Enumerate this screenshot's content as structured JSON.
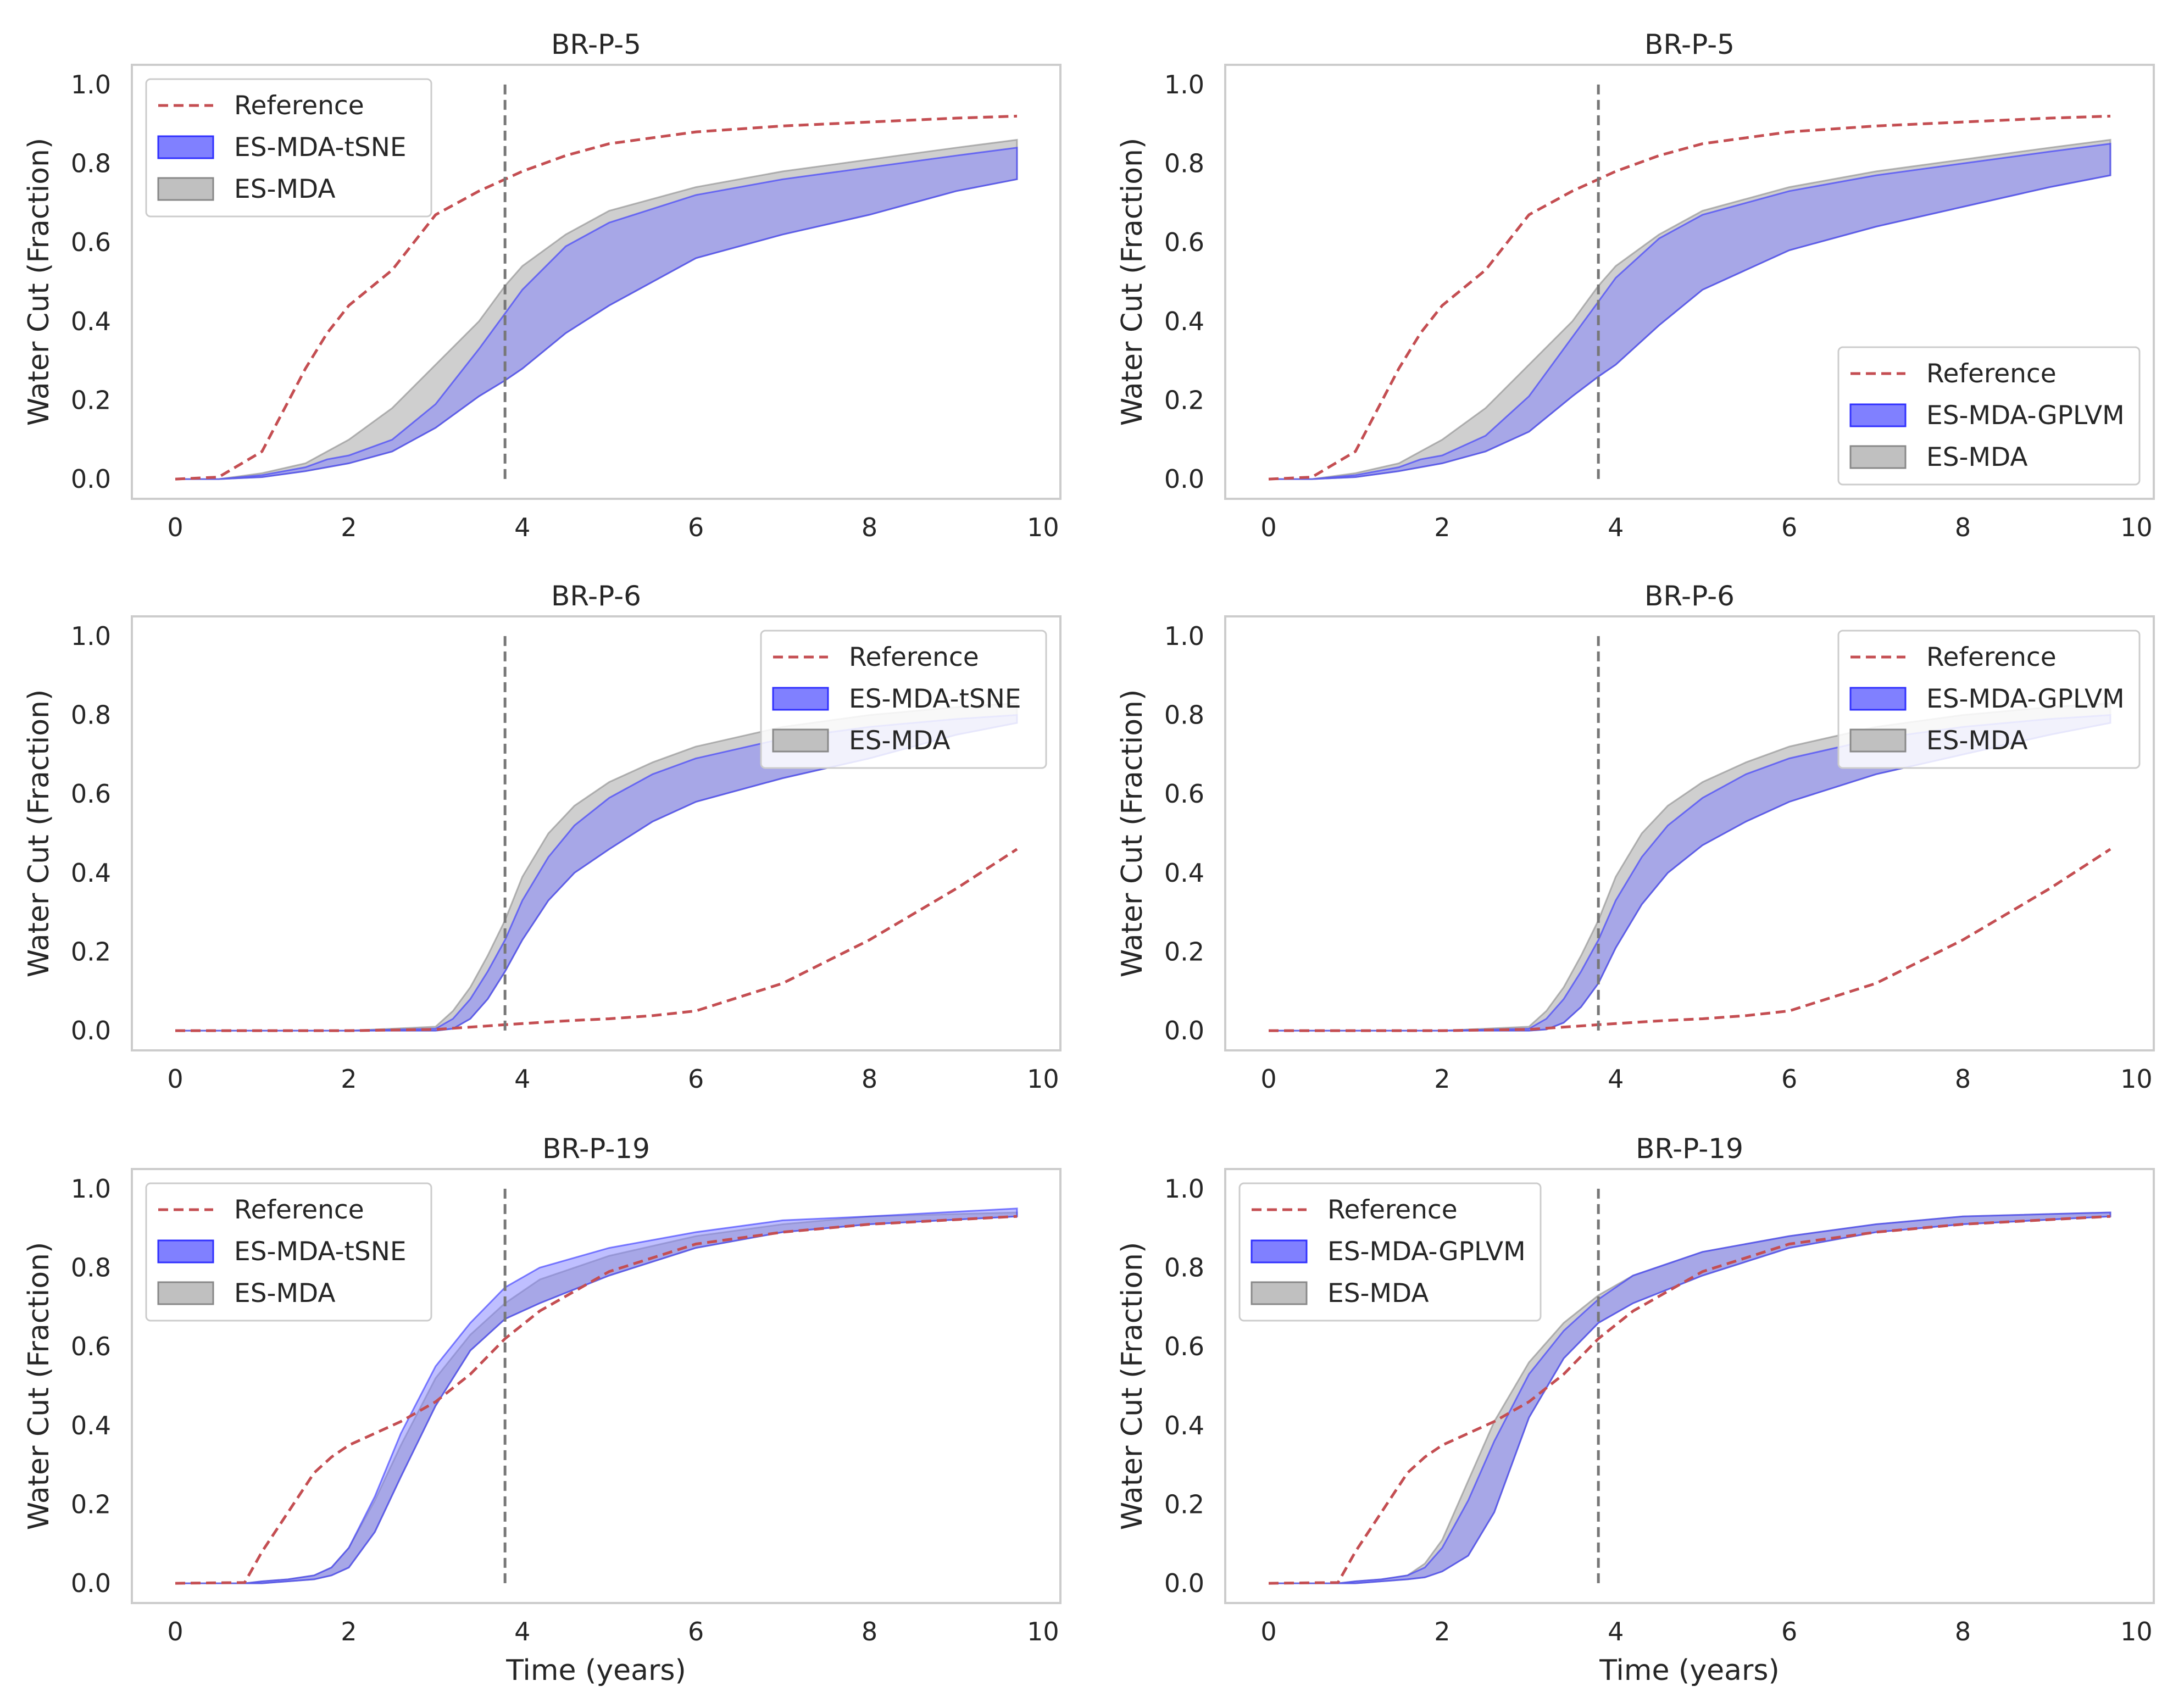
{
  "chart_data": [
    {
      "type": "area",
      "title": "BR-P-5",
      "xlabel": "",
      "ylabel": "Water Cut (Fraction)",
      "xlim": [
        -0.5,
        10.2
      ],
      "ylim": [
        -0.05,
        1.05
      ],
      "xticks": [
        "0",
        "2",
        "4",
        "6",
        "8",
        "10"
      ],
      "yticks": [
        "0.0",
        "0.2",
        "0.4",
        "0.6",
        "0.8",
        "1.0"
      ],
      "vline_x": 3.8,
      "legend_position": "upper-left",
      "legend": [
        "Reference",
        "ES-MDA-tSNE",
        "ES-MDA"
      ],
      "x": [
        0,
        0.5,
        1,
        1.5,
        1.75,
        2,
        2.5,
        3,
        3.5,
        3.8,
        4,
        4.5,
        5,
        6,
        7,
        8,
        9,
        9.7
      ],
      "series": [
        {
          "name": "Reference",
          "values": [
            0,
            0.005,
            0.07,
            0.28,
            0.37,
            0.44,
            0.53,
            0.67,
            0.73,
            0.76,
            0.78,
            0.82,
            0.85,
            0.88,
            0.895,
            0.905,
            0.915,
            0.92
          ]
        },
        {
          "name": "ES-MDA-tSNE",
          "lower": [
            0,
            0,
            0.005,
            0.02,
            0.03,
            0.04,
            0.07,
            0.13,
            0.21,
            0.25,
            0.28,
            0.37,
            0.44,
            0.56,
            0.62,
            0.67,
            0.73,
            0.76
          ],
          "upper": [
            0,
            0,
            0.01,
            0.03,
            0.05,
            0.06,
            0.1,
            0.19,
            0.33,
            0.42,
            0.48,
            0.59,
            0.65,
            0.72,
            0.76,
            0.79,
            0.82,
            0.84
          ]
        },
        {
          "name": "ES-MDA",
          "lower": [
            0,
            0,
            0.005,
            0.02,
            0.03,
            0.04,
            0.07,
            0.13,
            0.21,
            0.25,
            0.28,
            0.37,
            0.44,
            0.56,
            0.62,
            0.67,
            0.73,
            0.76
          ],
          "upper": [
            0,
            0,
            0.015,
            0.04,
            0.07,
            0.1,
            0.18,
            0.29,
            0.4,
            0.49,
            0.54,
            0.62,
            0.68,
            0.74,
            0.78,
            0.81,
            0.84,
            0.86
          ]
        }
      ]
    },
    {
      "type": "area",
      "title": "BR-P-5",
      "xlabel": "",
      "ylabel": "Water Cut (Fraction)",
      "xlim": [
        -0.5,
        10.2
      ],
      "ylim": [
        -0.05,
        1.05
      ],
      "xticks": [
        "0",
        "2",
        "4",
        "6",
        "8",
        "10"
      ],
      "yticks": [
        "0.0",
        "0.2",
        "0.4",
        "0.6",
        "0.8",
        "1.0"
      ],
      "vline_x": 3.8,
      "legend_position": "lower-right",
      "legend": [
        "Reference",
        "ES-MDA-GPLVM",
        "ES-MDA"
      ],
      "x": [
        0,
        0.5,
        1,
        1.5,
        1.75,
        2,
        2.5,
        3,
        3.5,
        3.8,
        4,
        4.5,
        5,
        6,
        7,
        8,
        9,
        9.7
      ],
      "series": [
        {
          "name": "Reference",
          "values": [
            0,
            0.005,
            0.07,
            0.28,
            0.37,
            0.44,
            0.53,
            0.67,
            0.73,
            0.76,
            0.78,
            0.82,
            0.85,
            0.88,
            0.895,
            0.905,
            0.915,
            0.92
          ]
        },
        {
          "name": "ES-MDA-GPLVM",
          "lower": [
            0,
            0,
            0.005,
            0.02,
            0.03,
            0.04,
            0.07,
            0.12,
            0.21,
            0.26,
            0.29,
            0.39,
            0.48,
            0.58,
            0.64,
            0.69,
            0.74,
            0.77
          ],
          "upper": [
            0,
            0,
            0.01,
            0.03,
            0.05,
            0.06,
            0.11,
            0.21,
            0.36,
            0.45,
            0.51,
            0.61,
            0.67,
            0.73,
            0.77,
            0.8,
            0.83,
            0.85
          ]
        },
        {
          "name": "ES-MDA",
          "lower": [
            0,
            0,
            0.005,
            0.02,
            0.03,
            0.04,
            0.07,
            0.12,
            0.21,
            0.26,
            0.29,
            0.39,
            0.48,
            0.58,
            0.64,
            0.69,
            0.74,
            0.77
          ],
          "upper": [
            0,
            0,
            0.015,
            0.04,
            0.07,
            0.1,
            0.18,
            0.29,
            0.4,
            0.49,
            0.54,
            0.62,
            0.68,
            0.74,
            0.78,
            0.81,
            0.84,
            0.86
          ]
        }
      ]
    },
    {
      "type": "area",
      "title": "BR-P-6",
      "xlabel": "",
      "ylabel": "Water Cut (Fraction)",
      "xlim": [
        -0.5,
        10.2
      ],
      "ylim": [
        -0.05,
        1.05
      ],
      "xticks": [
        "0",
        "2",
        "4",
        "6",
        "8",
        "10"
      ],
      "yticks": [
        "0.0",
        "0.2",
        "0.4",
        "0.6",
        "0.8",
        "1.0"
      ],
      "vline_x": 3.8,
      "legend_position": "upper-right",
      "legend": [
        "Reference",
        "ES-MDA-tSNE",
        "ES-MDA"
      ],
      "x": [
        0,
        1,
        2,
        3,
        3.2,
        3.4,
        3.6,
        3.8,
        4,
        4.3,
        4.6,
        5,
        5.5,
        6,
        7,
        8,
        9,
        9.7
      ],
      "series": [
        {
          "name": "Reference",
          "values": [
            0,
            0,
            0,
            0.003,
            0.006,
            0.009,
            0.012,
            0.015,
            0.018,
            0.022,
            0.026,
            0.03,
            0.038,
            0.05,
            0.12,
            0.23,
            0.36,
            0.46
          ]
        },
        {
          "name": "ES-MDA-tSNE",
          "lower": [
            0,
            0,
            0,
            0,
            0.005,
            0.03,
            0.08,
            0.15,
            0.23,
            0.33,
            0.4,
            0.46,
            0.53,
            0.58,
            0.64,
            0.69,
            0.75,
            0.78
          ],
          "upper": [
            0,
            0,
            0,
            0.005,
            0.03,
            0.08,
            0.15,
            0.23,
            0.33,
            0.44,
            0.52,
            0.59,
            0.65,
            0.69,
            0.74,
            0.77,
            0.79,
            0.8
          ]
        },
        {
          "name": "ES-MDA",
          "lower": [
            0,
            0,
            0,
            0,
            0.005,
            0.03,
            0.08,
            0.15,
            0.23,
            0.33,
            0.4,
            0.46,
            0.53,
            0.58,
            0.64,
            0.69,
            0.75,
            0.78
          ],
          "upper": [
            0,
            0,
            0,
            0.01,
            0.05,
            0.11,
            0.19,
            0.28,
            0.39,
            0.5,
            0.57,
            0.63,
            0.68,
            0.72,
            0.77,
            0.8,
            0.82,
            0.83
          ]
        }
      ]
    },
    {
      "type": "area",
      "title": "BR-P-6",
      "xlabel": "",
      "ylabel": "Water Cut (Fraction)",
      "xlim": [
        -0.5,
        10.2
      ],
      "ylim": [
        -0.05,
        1.05
      ],
      "xticks": [
        "0",
        "2",
        "4",
        "6",
        "8",
        "10"
      ],
      "yticks": [
        "0.0",
        "0.2",
        "0.4",
        "0.6",
        "0.8",
        "1.0"
      ],
      "vline_x": 3.8,
      "legend_position": "upper-right",
      "legend": [
        "Reference",
        "ES-MDA-GPLVM",
        "ES-MDA"
      ],
      "x": [
        0,
        1,
        2,
        3,
        3.2,
        3.4,
        3.6,
        3.8,
        4,
        4.3,
        4.6,
        5,
        5.5,
        6,
        7,
        8,
        9,
        9.7
      ],
      "series": [
        {
          "name": "Reference",
          "values": [
            0,
            0,
            0,
            0.003,
            0.006,
            0.009,
            0.012,
            0.015,
            0.018,
            0.022,
            0.026,
            0.03,
            0.038,
            0.05,
            0.12,
            0.23,
            0.36,
            0.46
          ]
        },
        {
          "name": "ES-MDA-GPLVM",
          "lower": [
            0,
            0,
            0,
            0,
            0.003,
            0.02,
            0.06,
            0.12,
            0.21,
            0.32,
            0.4,
            0.47,
            0.53,
            0.58,
            0.65,
            0.7,
            0.75,
            0.78
          ],
          "upper": [
            0,
            0,
            0,
            0.005,
            0.03,
            0.08,
            0.15,
            0.23,
            0.33,
            0.44,
            0.52,
            0.59,
            0.65,
            0.69,
            0.74,
            0.77,
            0.79,
            0.8
          ]
        },
        {
          "name": "ES-MDA",
          "lower": [
            0,
            0,
            0,
            0,
            0.003,
            0.02,
            0.06,
            0.12,
            0.21,
            0.32,
            0.4,
            0.47,
            0.53,
            0.58,
            0.65,
            0.7,
            0.75,
            0.78
          ],
          "upper": [
            0,
            0,
            0,
            0.01,
            0.05,
            0.11,
            0.19,
            0.28,
            0.39,
            0.5,
            0.57,
            0.63,
            0.68,
            0.72,
            0.77,
            0.8,
            0.82,
            0.83
          ]
        }
      ]
    },
    {
      "type": "area",
      "title": "BR-P-19",
      "xlabel": "Time (years)",
      "ylabel": "Water Cut (Fraction)",
      "xlim": [
        -0.5,
        10.2
      ],
      "ylim": [
        -0.05,
        1.05
      ],
      "xticks": [
        "0",
        "2",
        "4",
        "6",
        "8",
        "10"
      ],
      "yticks": [
        "0.0",
        "0.2",
        "0.4",
        "0.6",
        "0.8",
        "1.0"
      ],
      "vline_x": 3.8,
      "legend_position": "upper-left",
      "legend": [
        "Reference",
        "ES-MDA-tSNE",
        "ES-MDA"
      ],
      "x": [
        0,
        0.8,
        1,
        1.3,
        1.6,
        1.8,
        2,
        2.3,
        2.6,
        3,
        3.4,
        3.8,
        4.2,
        5,
        6,
        7,
        8,
        9.7
      ],
      "series": [
        {
          "name": "Reference",
          "values": [
            0,
            0.002,
            0.08,
            0.18,
            0.28,
            0.32,
            0.35,
            0.38,
            0.41,
            0.46,
            0.53,
            0.62,
            0.69,
            0.79,
            0.86,
            0.89,
            0.91,
            0.93
          ]
        },
        {
          "name": "ES-MDA-tSNE",
          "lower": [
            0,
            0,
            0,
            0.005,
            0.01,
            0.02,
            0.04,
            0.13,
            0.27,
            0.45,
            0.59,
            0.67,
            0.71,
            0.78,
            0.85,
            0.89,
            0.91,
            0.93
          ],
          "upper": [
            0,
            0,
            0.005,
            0.01,
            0.02,
            0.04,
            0.09,
            0.22,
            0.38,
            0.55,
            0.66,
            0.75,
            0.8,
            0.85,
            0.89,
            0.92,
            0.93,
            0.95
          ]
        },
        {
          "name": "ES-MDA",
          "lower": [
            0,
            0,
            0,
            0.005,
            0.01,
            0.02,
            0.04,
            0.13,
            0.27,
            0.45,
            0.59,
            0.67,
            0.71,
            0.78,
            0.85,
            0.89,
            0.91,
            0.93
          ],
          "upper": [
            0,
            0,
            0.005,
            0.01,
            0.02,
            0.04,
            0.09,
            0.21,
            0.35,
            0.52,
            0.63,
            0.71,
            0.77,
            0.83,
            0.88,
            0.91,
            0.93,
            0.94
          ]
        }
      ]
    },
    {
      "type": "area",
      "title": "BR-P-19",
      "xlabel": "Time (years)",
      "ylabel": "Water Cut (Fraction)",
      "xlim": [
        -0.5,
        10.2
      ],
      "ylim": [
        -0.05,
        1.05
      ],
      "xticks": [
        "0",
        "2",
        "4",
        "6",
        "8",
        "10"
      ],
      "yticks": [
        "0.0",
        "0.2",
        "0.4",
        "0.6",
        "0.8",
        "1.0"
      ],
      "vline_x": 3.8,
      "legend_position": "upper-left",
      "legend": [
        "Reference",
        "ES-MDA-GPLVM",
        "ES-MDA"
      ],
      "x": [
        0,
        0.8,
        1,
        1.3,
        1.6,
        1.8,
        2,
        2.3,
        2.6,
        3,
        3.4,
        3.8,
        4.2,
        5,
        6,
        7,
        8,
        9.7
      ],
      "series": [
        {
          "name": "Reference",
          "values": [
            0,
            0.002,
            0.08,
            0.18,
            0.28,
            0.32,
            0.35,
            0.38,
            0.41,
            0.46,
            0.53,
            0.62,
            0.69,
            0.79,
            0.86,
            0.89,
            0.91,
            0.93
          ]
        },
        {
          "name": "ES-MDA-GPLVM",
          "lower": [
            0,
            0,
            0,
            0.005,
            0.01,
            0.015,
            0.03,
            0.07,
            0.18,
            0.42,
            0.57,
            0.66,
            0.71,
            0.78,
            0.85,
            0.89,
            0.91,
            0.93
          ],
          "upper": [
            0,
            0,
            0.005,
            0.01,
            0.02,
            0.04,
            0.09,
            0.21,
            0.36,
            0.53,
            0.64,
            0.72,
            0.78,
            0.84,
            0.88,
            0.91,
            0.93,
            0.94
          ]
        },
        {
          "name": "ES-MDA",
          "lower": [
            0,
            0,
            0,
            0.005,
            0.01,
            0.015,
            0.03,
            0.07,
            0.18,
            0.42,
            0.57,
            0.66,
            0.71,
            0.78,
            0.85,
            0.89,
            0.91,
            0.93
          ],
          "upper": [
            0,
            0,
            0.005,
            0.01,
            0.02,
            0.05,
            0.11,
            0.26,
            0.41,
            0.56,
            0.66,
            0.73,
            0.78,
            0.84,
            0.88,
            0.91,
            0.93,
            0.94
          ]
        }
      ]
    }
  ],
  "colors": {
    "reference": "#c44e52",
    "ensemble_fill": "#8080ff",
    "ensemble_edge": "#3030ff",
    "esmda_fill": "#a0a0a0",
    "esmda_edge": "#888888",
    "vline": "#777777",
    "spine": "#cccccc"
  }
}
